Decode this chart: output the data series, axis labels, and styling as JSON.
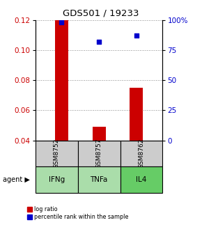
{
  "title": "GDS501 / 19233",
  "samples": [
    "GSM8752",
    "GSM8757",
    "GSM8762"
  ],
  "agents": [
    "IFNg",
    "TNFa",
    "IL4"
  ],
  "log_ratios": [
    0.12,
    0.049,
    0.075
  ],
  "percentile_ranks": [
    98,
    82,
    87
  ],
  "bar_color": "#cc0000",
  "dot_color": "#0000cc",
  "ylim_left": [
    0.04,
    0.12
  ],
  "ylim_right": [
    0,
    100
  ],
  "yticks_left": [
    0.04,
    0.06,
    0.08,
    0.1,
    0.12
  ],
  "yticks_right": [
    0,
    25,
    50,
    75,
    100
  ],
  "ytick_labels_right": [
    "0",
    "25",
    "50",
    "75",
    "100%"
  ],
  "bar_width": 0.35,
  "sample_box_color": "#cccccc",
  "agent_colors": [
    "#aaddaa",
    "#aaddaa",
    "#66cc66"
  ],
  "legend_red_label": "log ratio",
  "legend_blue_label": "percentile rank within the sample",
  "agent_label": "agent",
  "grid_color": "#888888"
}
